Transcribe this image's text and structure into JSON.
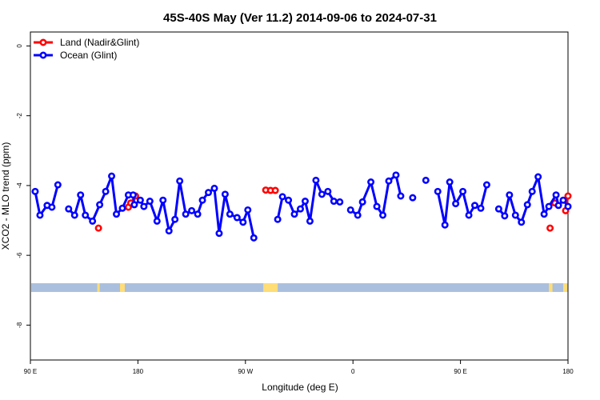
{
  "chart_data": {
    "type": "line",
    "title": "45S-40S May (Ver 11.2)   2014-09-06 to 2024-07-31",
    "xlabel": "Longitude (deg E)",
    "ylabel": "XCO2 - MLO trend (ppm)",
    "xlim": [
      90,
      540
    ],
    "ylim": [
      -9.0,
      0.4
    ],
    "x_ticks": [
      {
        "value": 90,
        "label": "90 E"
      },
      {
        "value": 180,
        "label": "180"
      },
      {
        "value": 270,
        "label": "90 W"
      },
      {
        "value": 360,
        "label": "0"
      },
      {
        "value": 450,
        "label": "90 E"
      },
      {
        "value": 540,
        "label": "180"
      }
    ],
    "y_ticks": [
      {
        "value": 0,
        "label": "0"
      },
      {
        "value": -2,
        "label": "-2"
      },
      {
        "value": -4,
        "label": "-4"
      },
      {
        "value": -6,
        "label": "-6"
      },
      {
        "value": -8,
        "label": "-8"
      }
    ],
    "legend": {
      "position": "top-left",
      "entries": [
        {
          "name": "Land (Nadir&Glint)",
          "color": "#ff0000"
        },
        {
          "name": "Ocean (Glint)",
          "color": "#0000ff"
        }
      ]
    },
    "series": [
      {
        "name": "Land (Nadir&Glint)",
        "color": "#ff0000",
        "segments": [
          [
            [
              147,
              -5.22
            ]
          ],
          [
            [
              172,
              -4.62
            ],
            [
              174,
              -4.5
            ],
            [
              178,
              -4.3
            ]
          ],
          [
            [
              287,
              -4.13
            ],
            [
              291,
              -4.14
            ],
            [
              295,
              -4.14
            ]
          ],
          [
            [
              525,
              -5.22
            ]
          ],
          [
            [
              529,
              -4.5
            ]
          ],
          [
            [
              538,
              -4.72
            ],
            [
              540,
              -4.3
            ]
          ]
        ]
      },
      {
        "name": "Ocean (Glint)",
        "color": "#0000ff",
        "segments": [
          [
            [
              94,
              -4.17
            ],
            [
              98,
              -4.85
            ],
            [
              104,
              -4.57
            ],
            [
              108,
              -4.62
            ],
            [
              113,
              -3.98
            ]
          ],
          [
            [
              122,
              -4.67
            ],
            [
              127,
              -4.85
            ],
            [
              132,
              -4.27
            ],
            [
              136,
              -4.85
            ],
            [
              142,
              -5.02
            ],
            [
              148,
              -4.55
            ],
            [
              153,
              -4.17
            ],
            [
              158,
              -3.73
            ],
            [
              162,
              -4.82
            ],
            [
              167,
              -4.65
            ],
            [
              172,
              -4.27
            ],
            [
              176,
              -4.27
            ],
            [
              177,
              -4.55
            ],
            [
              182,
              -4.42
            ],
            [
              185,
              -4.6
            ],
            [
              190,
              -4.45
            ],
            [
              196,
              -5.02
            ],
            [
              201,
              -4.42
            ],
            [
              206,
              -5.3
            ],
            [
              211,
              -4.97
            ],
            [
              215,
              -3.87
            ],
            [
              220,
              -4.82
            ],
            [
              225,
              -4.72
            ],
            [
              230,
              -4.82
            ],
            [
              234,
              -4.42
            ],
            [
              239,
              -4.2
            ],
            [
              244,
              -4.08
            ],
            [
              248,
              -5.37
            ],
            [
              253,
              -4.25
            ],
            [
              257,
              -4.82
            ],
            [
              263,
              -4.92
            ],
            [
              268,
              -5.05
            ],
            [
              272,
              -4.7
            ],
            [
              277,
              -5.5
            ]
          ],
          [
            [
              297,
              -4.97
            ],
            [
              301,
              -4.32
            ],
            [
              306,
              -4.42
            ],
            [
              311,
              -4.82
            ],
            [
              316,
              -4.67
            ],
            [
              320,
              -4.45
            ],
            [
              324,
              -5.02
            ],
            [
              329,
              -3.85
            ],
            [
              334,
              -4.25
            ],
            [
              339,
              -4.17
            ],
            [
              344,
              -4.45
            ],
            [
              349,
              -4.47
            ]
          ],
          [
            [
              358,
              -4.7
            ],
            [
              364,
              -4.85
            ],
            [
              368,
              -4.47
            ],
            [
              375,
              -3.9
            ],
            [
              380,
              -4.6
            ],
            [
              385,
              -4.85
            ],
            [
              390,
              -3.87
            ],
            [
              396,
              -3.7
            ],
            [
              400,
              -4.3
            ]
          ],
          [
            [
              410,
              -4.35
            ]
          ],
          [
            [
              421,
              -3.85
            ]
          ],
          [
            [
              431,
              -4.17
            ],
            [
              437,
              -5.13
            ],
            [
              441,
              -3.9
            ],
            [
              446,
              -4.52
            ],
            [
              452,
              -4.17
            ],
            [
              457,
              -4.85
            ],
            [
              462,
              -4.57
            ],
            [
              467,
              -4.65
            ],
            [
              472,
              -3.98
            ]
          ],
          [
            [
              482,
              -4.67
            ],
            [
              487,
              -4.87
            ],
            [
              491,
              -4.27
            ],
            [
              496,
              -4.85
            ],
            [
              501,
              -5.05
            ],
            [
              506,
              -4.55
            ],
            [
              510,
              -4.17
            ],
            [
              515,
              -3.75
            ],
            [
              520,
              -4.82
            ],
            [
              524,
              -4.6
            ],
            [
              530,
              -4.27
            ],
            [
              532,
              -4.57
            ],
            [
              536,
              -4.42
            ],
            [
              540,
              -4.6
            ]
          ]
        ]
      }
    ],
    "surface_band": {
      "ylim": [
        -7.05,
        -6.8
      ],
      "ocean_color": "#aabfdd",
      "land_color": "#ffdd77",
      "land_spans": [
        [
          146,
          148
        ],
        [
          165,
          169
        ],
        [
          285,
          297
        ],
        [
          524,
          527
        ],
        [
          536,
          540
        ]
      ]
    }
  }
}
